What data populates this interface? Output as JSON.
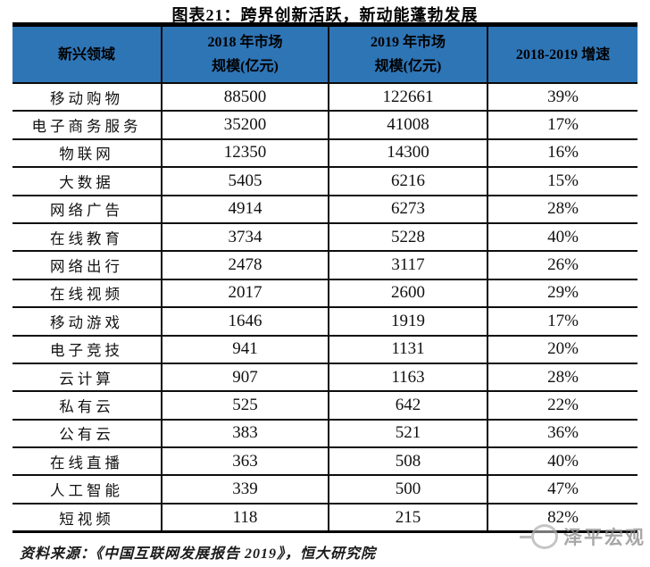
{
  "title": "图表21：跨界创新活跃，新动能蓬勃发展",
  "source_note": "资料来源：《中国互联网发展报告 2019》，恒大研究院",
  "watermark": "泽平宏观",
  "colors": {
    "header_bg": "#2E75B6",
    "border": "#0d0d0d",
    "watermark_gray": "#8f8f8f"
  },
  "table": {
    "headers": [
      {
        "line1": "新兴领域",
        "line2": ""
      },
      {
        "line1": "2018 年市场",
        "line2": "规模(亿元)"
      },
      {
        "line1": "2019 年市场",
        "line2": "规模(亿元)"
      },
      {
        "line1": "2018-2019 增速",
        "line2": ""
      }
    ],
    "rows": [
      [
        "移动购物",
        "88500",
        "122661",
        "39%"
      ],
      [
        "电子商务服务",
        "35200",
        "41008",
        "17%"
      ],
      [
        "物联网",
        "12350",
        "14300",
        "16%"
      ],
      [
        "大数据",
        "5405",
        "6216",
        "15%"
      ],
      [
        "网络广告",
        "4914",
        "6273",
        "28%"
      ],
      [
        "在线教育",
        "3734",
        "5228",
        "40%"
      ],
      [
        "网络出行",
        "2478",
        "3117",
        "26%"
      ],
      [
        "在线视频",
        "2017",
        "2600",
        "29%"
      ],
      [
        "移动游戏",
        "1646",
        "1919",
        "17%"
      ],
      [
        "电子竞技",
        "941",
        "1131",
        "20%"
      ],
      [
        "云计算",
        "907",
        "1163",
        "28%"
      ],
      [
        "私有云",
        "525",
        "642",
        "22%"
      ],
      [
        "公有云",
        "383",
        "521",
        "36%"
      ],
      [
        "在线直播",
        "363",
        "508",
        "40%"
      ],
      [
        "人工智能",
        "339",
        "500",
        "47%"
      ],
      [
        "短视频",
        "118",
        "215",
        "82%"
      ]
    ]
  },
  "chart_data": {
    "type": "table",
    "title": "图表21：跨界创新活跃，新动能蓬勃发展",
    "columns": [
      "新兴领域",
      "2018 年市场规模(亿元)",
      "2019 年市场规模(亿元)",
      "2018-2019 增速"
    ],
    "rows": [
      [
        "移动购物",
        88500,
        122661,
        "39%"
      ],
      [
        "电子商务服务",
        35200,
        41008,
        "17%"
      ],
      [
        "物联网",
        12350,
        14300,
        "16%"
      ],
      [
        "大数据",
        5405,
        6216,
        "15%"
      ],
      [
        "网络广告",
        4914,
        6273,
        "28%"
      ],
      [
        "在线教育",
        3734,
        5228,
        "40%"
      ],
      [
        "网络出行",
        2478,
        3117,
        "26%"
      ],
      [
        "在线视频",
        2017,
        2600,
        "29%"
      ],
      [
        "移动游戏",
        1646,
        1919,
        "17%"
      ],
      [
        "电子竞技",
        941,
        1131,
        "20%"
      ],
      [
        "云计算",
        907,
        1163,
        "28%"
      ],
      [
        "私有云",
        525,
        642,
        "22%"
      ],
      [
        "公有云",
        383,
        521,
        "36%"
      ],
      [
        "在线直播",
        363,
        508,
        "40%"
      ],
      [
        "人工智能",
        339,
        500,
        "47%"
      ],
      [
        "短视频",
        118,
        215,
        "82%"
      ]
    ],
    "source": "资料来源：《中国互联网发展报告 2019》，恒大研究院"
  }
}
